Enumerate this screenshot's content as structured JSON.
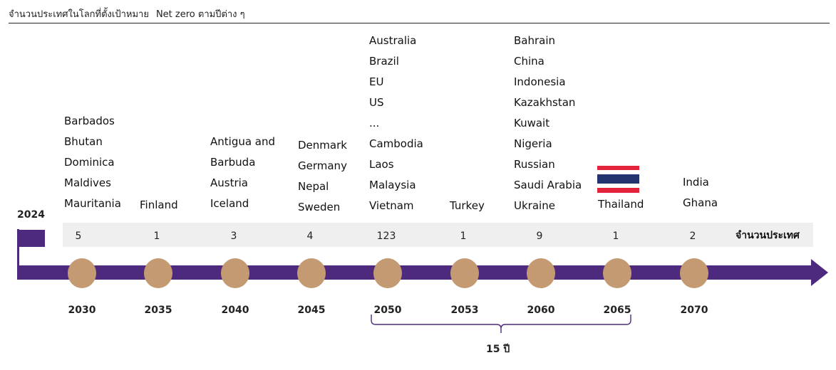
{
  "header": {
    "title_thai": "จำนวนประเทศในโลกที่ตั้งเป้าหมาย",
    "title_netzero": "Net zero",
    "title_suffix": "ตามปีต่าง ๆ"
  },
  "start_year": "2024",
  "count_label": "จำนวนประเทศ",
  "span_label": "15 ปี",
  "colors": {
    "timeline": "#4e2a7e",
    "milestone": "#c49a72",
    "band": "#efefef"
  },
  "icons": {
    "start": "flag-icon",
    "thailand": "thailand-flag-icon"
  },
  "milestones": [
    {
      "year": "2030",
      "count": "5",
      "countries": [
        "Barbados",
        "Bhutan",
        "Dominica",
        "Maldives",
        "Mauritania"
      ]
    },
    {
      "year": "2035",
      "count": "1",
      "countries": [
        "Finland"
      ]
    },
    {
      "year": "2040",
      "count": "3",
      "countries": [
        "Antigua and",
        "Barbuda",
        "Austria",
        "Iceland"
      ]
    },
    {
      "year": "2045",
      "count": "4",
      "countries": [
        "Denmark",
        "Germany",
        "Nepal",
        "Sweden"
      ]
    },
    {
      "year": "2050",
      "count": "123",
      "countries": [
        "Australia",
        "Brazil",
        "EU",
        "US",
        "...",
        "Cambodia",
        "Laos",
        "Malaysia",
        "Vietnam"
      ]
    },
    {
      "year": "2053",
      "count": "1",
      "countries": [
        "Turkey"
      ]
    },
    {
      "year": "2060",
      "count": "9",
      "countries": [
        "Bahrain",
        "China",
        "Indonesia",
        "Kazakhstan",
        "Kuwait",
        "Nigeria",
        "Russian",
        "Saudi Arabia",
        "Ukraine"
      ]
    },
    {
      "year": "2065",
      "count": "1",
      "countries": [
        "Thailand"
      ]
    },
    {
      "year": "2070",
      "count": "2",
      "countries": [
        "India",
        "Ghana"
      ]
    }
  ]
}
